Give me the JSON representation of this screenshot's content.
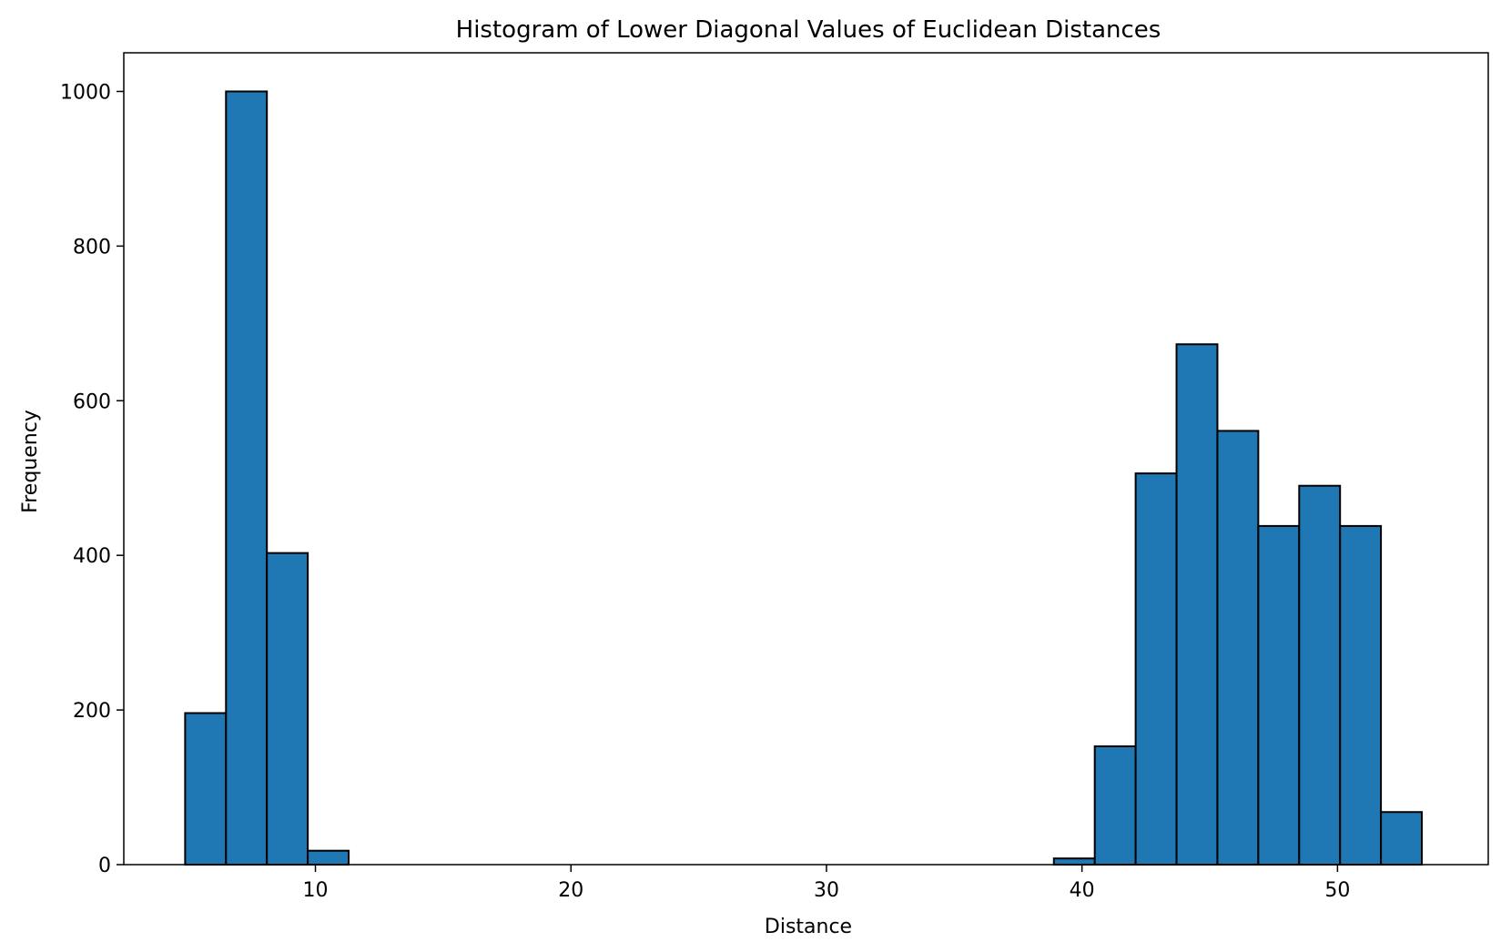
{
  "chart_data": {
    "type": "bar",
    "title": "Histogram of Lower Diagonal Values of Euclidean Distances",
    "xlabel": "Distance",
    "ylabel": "Frequency",
    "xlim": [
      2.5,
      55.9
    ],
    "ylim": [
      0,
      1050
    ],
    "xticks": [
      10,
      20,
      30,
      40,
      50
    ],
    "yticks": [
      0,
      200,
      400,
      600,
      800,
      1000
    ],
    "bar_color": "#1f77b4",
    "edge_color": "#000000",
    "grid": false,
    "bins": [
      {
        "x0": 4.9,
        "x1": 6.5,
        "value": 196
      },
      {
        "x0": 6.5,
        "x1": 8.1,
        "value": 1000
      },
      {
        "x0": 8.1,
        "x1": 9.7,
        "value": 403
      },
      {
        "x0": 9.7,
        "x1": 11.3,
        "value": 18
      },
      {
        "x0": 11.3,
        "x1": 12.9,
        "value": 0
      },
      {
        "x0": 12.9,
        "x1": 14.5,
        "value": 0
      },
      {
        "x0": 14.5,
        "x1": 16.1,
        "value": 0
      },
      {
        "x0": 16.1,
        "x1": 17.7,
        "value": 0
      },
      {
        "x0": 17.7,
        "x1": 19.3,
        "value": 0
      },
      {
        "x0": 19.3,
        "x1": 20.9,
        "value": 0
      },
      {
        "x0": 20.9,
        "x1": 22.5,
        "value": 0
      },
      {
        "x0": 22.5,
        "x1": 24.1,
        "value": 0
      },
      {
        "x0": 24.1,
        "x1": 25.7,
        "value": 0
      },
      {
        "x0": 25.7,
        "x1": 27.3,
        "value": 0
      },
      {
        "x0": 27.3,
        "x1": 28.9,
        "value": 0
      },
      {
        "x0": 28.9,
        "x1": 30.5,
        "value": 0
      },
      {
        "x0": 30.5,
        "x1": 32.1,
        "value": 0
      },
      {
        "x0": 32.1,
        "x1": 33.7,
        "value": 0
      },
      {
        "x0": 33.7,
        "x1": 35.3,
        "value": 0
      },
      {
        "x0": 35.3,
        "x1": 36.9,
        "value": 0
      },
      {
        "x0": 36.9,
        "x1": 38.5,
        "value": 0
      },
      {
        "x0": 38.9,
        "x1": 40.5,
        "value": 8
      },
      {
        "x0": 40.5,
        "x1": 42.1,
        "value": 153
      },
      {
        "x0": 42.1,
        "x1": 43.7,
        "value": 506
      },
      {
        "x0": 43.7,
        "x1": 45.3,
        "value": 673
      },
      {
        "x0": 45.3,
        "x1": 46.9,
        "value": 561
      },
      {
        "x0": 46.9,
        "x1": 48.5,
        "value": 438
      },
      {
        "x0": 48.5,
        "x1": 50.1,
        "value": 490
      },
      {
        "x0": 50.1,
        "x1": 51.7,
        "value": 438
      },
      {
        "x0": 51.7,
        "x1": 53.3,
        "value": 68
      }
    ]
  }
}
